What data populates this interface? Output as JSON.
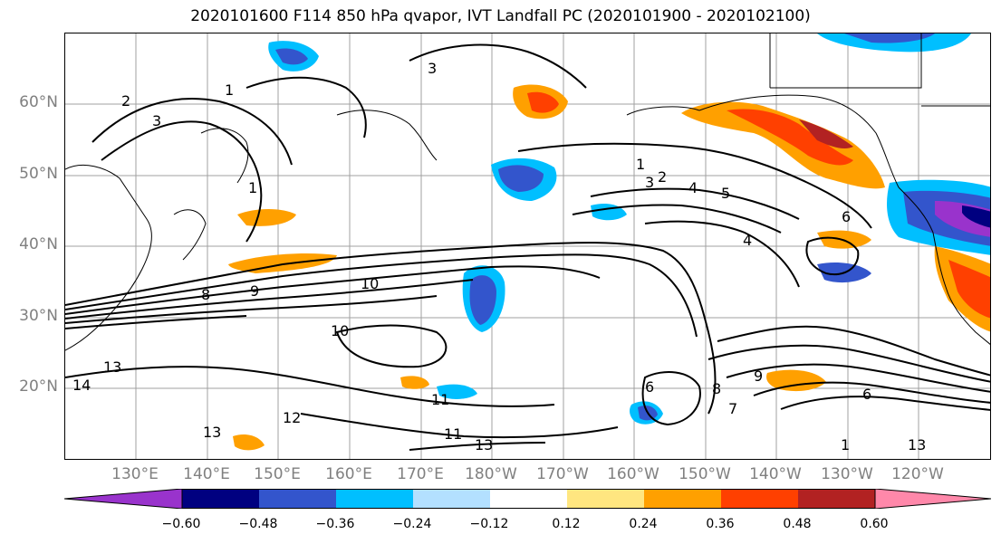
{
  "title": "2020101600 F114 850 hPa qvapor, IVT Landfall PC (2020101900 - 2020102100)",
  "lat_labels": [
    "60°N",
    "50°N",
    "40°N",
    "30°N",
    "20°N"
  ],
  "lon_labels": [
    "130°E",
    "140°E",
    "150°E",
    "160°E",
    "170°E",
    "180°W",
    "170°W",
    "160°W",
    "150°W",
    "140°W",
    "130°W",
    "120°W"
  ],
  "colorbar": {
    "colors": [
      "#9933cc",
      "#000080",
      "#3355cc",
      "#00bfff",
      "#b3e0ff",
      "#ffffff",
      "#ffe680",
      "#ffa000",
      "#ff4000",
      "#b22222",
      "#ff88aa"
    ],
    "tick_labels": [
      "−0.60",
      "−0.48",
      "−0.36",
      "−0.24",
      "−0.12",
      "0.12",
      "0.24",
      "0.36",
      "0.48",
      "0.60"
    ]
  },
  "contour_labels": [
    "3",
    "2",
    "3",
    "1",
    "1",
    "1",
    "3",
    "2",
    "4",
    "5",
    "6",
    "4",
    "8",
    "9",
    "10",
    "10",
    "13",
    "14",
    "13",
    "12",
    "11",
    "11",
    "13",
    "6",
    "7",
    "8",
    "9",
    "6",
    "1",
    "13"
  ],
  "palette": {
    "contour": "#000000",
    "grid": "#a0a0a0",
    "coast": "#000000"
  }
}
